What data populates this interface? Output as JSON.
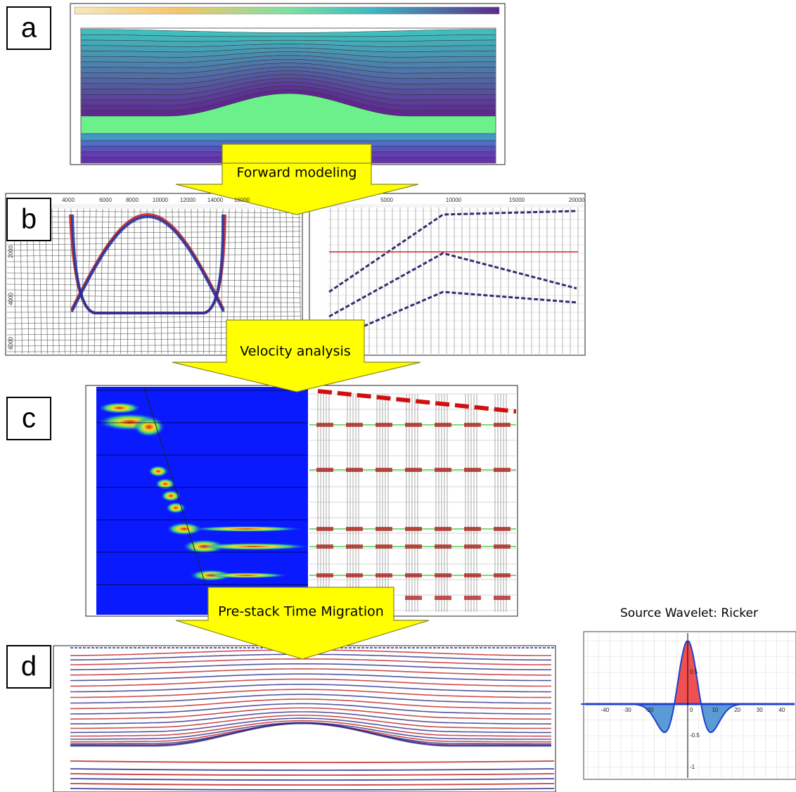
{
  "panels": [
    {
      "label": "a"
    },
    {
      "label": "b"
    },
    {
      "label": "c"
    },
    {
      "label": "d"
    }
  ],
  "arrows": [
    {
      "text": "Forward modeling"
    },
    {
      "text": "Velocity analysis"
    },
    {
      "text": "Pre-stack Time Migration"
    }
  ],
  "panel_b": {
    "left_x_ticks": [
      "4000",
      "6000",
      "8000",
      "10000",
      "12000",
      "14000",
      "16000"
    ],
    "left_y_ticks": [
      "2000",
      "4000",
      "6000"
    ],
    "right_x_ticks": [
      "5000",
      "10000",
      "15000",
      "20000"
    ]
  },
  "wavelet": {
    "title": "Source Wavelet: Ricker",
    "x_ticks": [
      "-40",
      "-30",
      "-20",
      "0",
      "10",
      "20",
      "30",
      "40"
    ],
    "y_ticks": [
      "0.5",
      "-0.5",
      "-1"
    ]
  }
}
